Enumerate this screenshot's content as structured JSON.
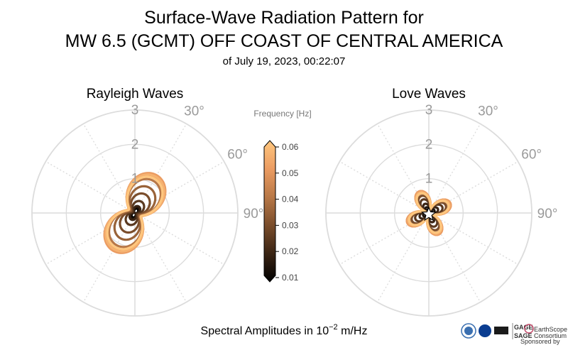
{
  "title": {
    "line1": "Surface-Wave Radiation Pattern for",
    "line2": "MW 6.5 (GCMT) OFF COAST OF CENTRAL AMERICA",
    "line3": "of July 19, 2023, 00:22:07"
  },
  "footer": {
    "text": "Spectral Amplitudes in",
    "base": "10",
    "exponent": "−2",
    "unit": "m/Hz"
  },
  "logos": {
    "gage": "GAGE",
    "sage": "SAGE",
    "earthscope": "EarthScope",
    "consortium": "Consortium",
    "sponsored": "Sponsored by"
  },
  "colorbar": {
    "label": "Frequency [Hz]",
    "ticks": [
      "0.06",
      "0.05",
      "0.04",
      "0.03",
      "0.02",
      "0.01"
    ],
    "min": 0.01,
    "max": 0.06,
    "colormap": "copper",
    "stops": [
      "#000000",
      "#3a2414",
      "#7a4d2b",
      "#b87847",
      "#eb9c62",
      "#ffc77f"
    ]
  },
  "chart_data": [
    {
      "type": "polar-line",
      "panel": "rayleigh",
      "title": "Rayleigh Waves",
      "rlim": [
        0,
        3
      ],
      "radial_ticks": [
        "1",
        "2",
        "3"
      ],
      "angular_ticks": [
        "30°",
        "60°",
        "90°"
      ],
      "theta_zero": "N",
      "theta_direction": "clockwise",
      "grid": true,
      "series": [
        {
          "frequency": 0.01,
          "a": 0.12,
          "b": 0.02,
          "phi": 30
        },
        {
          "frequency": 0.015,
          "a": 0.15,
          "b": 0.03,
          "phi": 30
        },
        {
          "frequency": 0.02,
          "a": 0.18,
          "b": 0.04,
          "phi": 30
        },
        {
          "frequency": 0.025,
          "a": 0.3,
          "b": 0.08,
          "phi": 30
        },
        {
          "frequency": 0.03,
          "a": 0.5,
          "b": 0.12,
          "phi": 30
        },
        {
          "frequency": 0.035,
          "a": 0.7,
          "b": 0.15,
          "phi": 30
        },
        {
          "frequency": 0.04,
          "a": 0.9,
          "b": 0.18,
          "phi": 30
        },
        {
          "frequency": 0.045,
          "a": 1.0,
          "b": 0.2,
          "phi": 30
        },
        {
          "frequency": 0.05,
          "a": 1.05,
          "b": 0.22,
          "phi": 30
        },
        {
          "frequency": 0.055,
          "a": 1.0,
          "b": 0.22,
          "phi": 30
        },
        {
          "frequency": 0.06,
          "a": 0.95,
          "b": 0.2,
          "phi": 30
        }
      ]
    },
    {
      "type": "polar-line",
      "panel": "love",
      "title": "Love Waves",
      "rlim": [
        0,
        3
      ],
      "radial_ticks": [
        "1",
        "2",
        "3"
      ],
      "angular_ticks": [
        "30°",
        "60°",
        "90°"
      ],
      "theta_zero": "N",
      "theta_direction": "clockwise",
      "grid": true,
      "series": [
        {
          "frequency": 0.01,
          "a": 0.08,
          "b": 0.02,
          "phi": 20
        },
        {
          "frequency": 0.015,
          "a": 0.15,
          "b": 0.03,
          "phi": 20
        },
        {
          "frequency": 0.02,
          "a": 0.25,
          "b": 0.04,
          "phi": 20
        },
        {
          "frequency": 0.025,
          "a": 0.38,
          "b": 0.05,
          "phi": 20
        },
        {
          "frequency": 0.03,
          "a": 0.48,
          "b": 0.06,
          "phi": 20
        },
        {
          "frequency": 0.035,
          "a": 0.55,
          "b": 0.06,
          "phi": 20
        },
        {
          "frequency": 0.04,
          "a": 0.6,
          "b": 0.07,
          "phi": 20
        },
        {
          "frequency": 0.045,
          "a": 0.62,
          "b": 0.07,
          "phi": 20
        },
        {
          "frequency": 0.05,
          "a": 0.62,
          "b": 0.07,
          "phi": 20
        },
        {
          "frequency": 0.055,
          "a": 0.58,
          "b": 0.07,
          "phi": 20
        },
        {
          "frequency": 0.06,
          "a": 0.55,
          "b": 0.07,
          "phi": 20
        }
      ]
    }
  ]
}
